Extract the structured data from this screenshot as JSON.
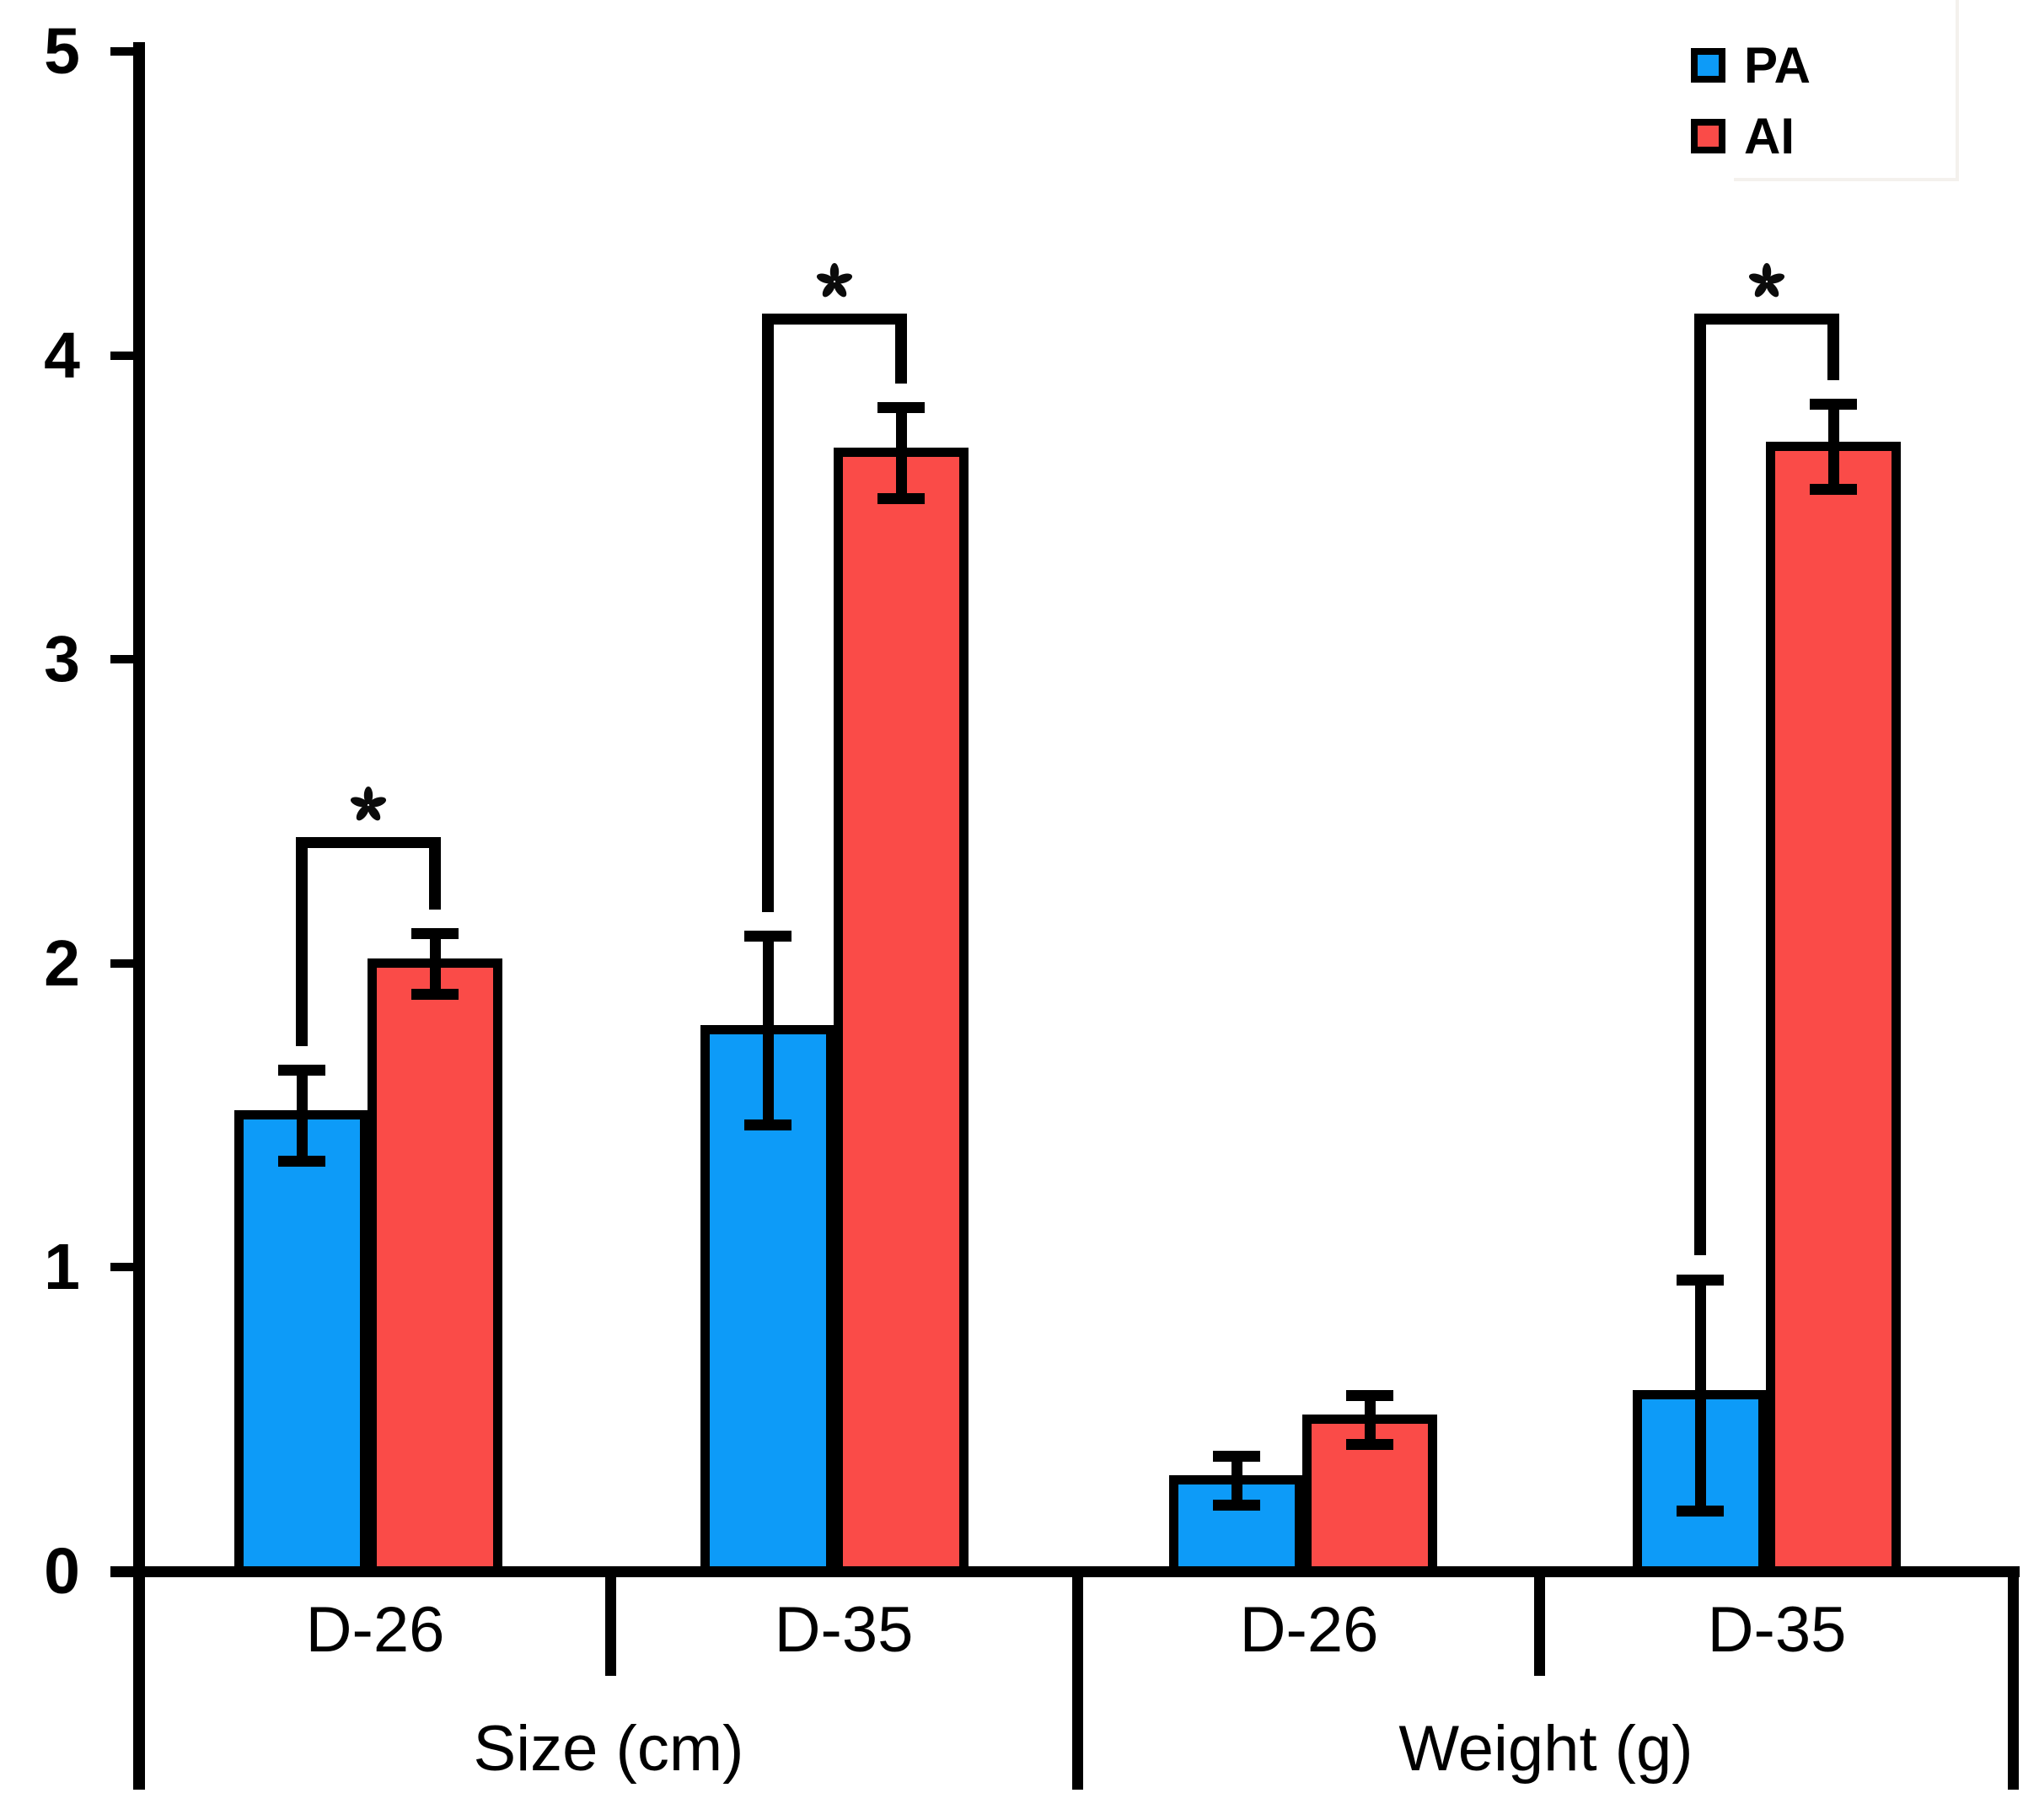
{
  "chart_data": {
    "type": "bar",
    "title": "",
    "xlabel": "",
    "ylabel": "",
    "ylim": [
      0,
      5
    ],
    "yticks": [
      0,
      1,
      2,
      3,
      4,
      5
    ],
    "grid": false,
    "legend_position": "top-right",
    "sections": [
      {
        "label": "Size (cm)",
        "categories": [
          "D-26",
          "D-35"
        ]
      },
      {
        "label": "Weight (g)",
        "categories": [
          "D-26",
          "D-35"
        ]
      }
    ],
    "categories": [
      "Size (cm) D-26",
      "Size (cm) D-35",
      "Weight (g) D-26",
      "Weight (g) D-35"
    ],
    "series": [
      {
        "name": "PA",
        "color": "#0D9BF8",
        "values": [
          1.5,
          1.78,
          0.3,
          0.58
        ],
        "errors": [
          0.15,
          0.31,
          0.08,
          0.38
        ]
      },
      {
        "name": "AI",
        "color": "#FA4B48",
        "values": [
          2.0,
          3.68,
          0.5,
          3.7
        ],
        "errors": [
          0.1,
          0.15,
          0.08,
          0.14
        ]
      }
    ],
    "significance": [
      {
        "category_index": 0,
        "label": "*",
        "bracket_top": 2.4
      },
      {
        "category_index": 1,
        "label": "*",
        "bracket_top": 4.12
      },
      {
        "category_index": 3,
        "label": "*",
        "bracket_top": 4.12
      }
    ]
  }
}
